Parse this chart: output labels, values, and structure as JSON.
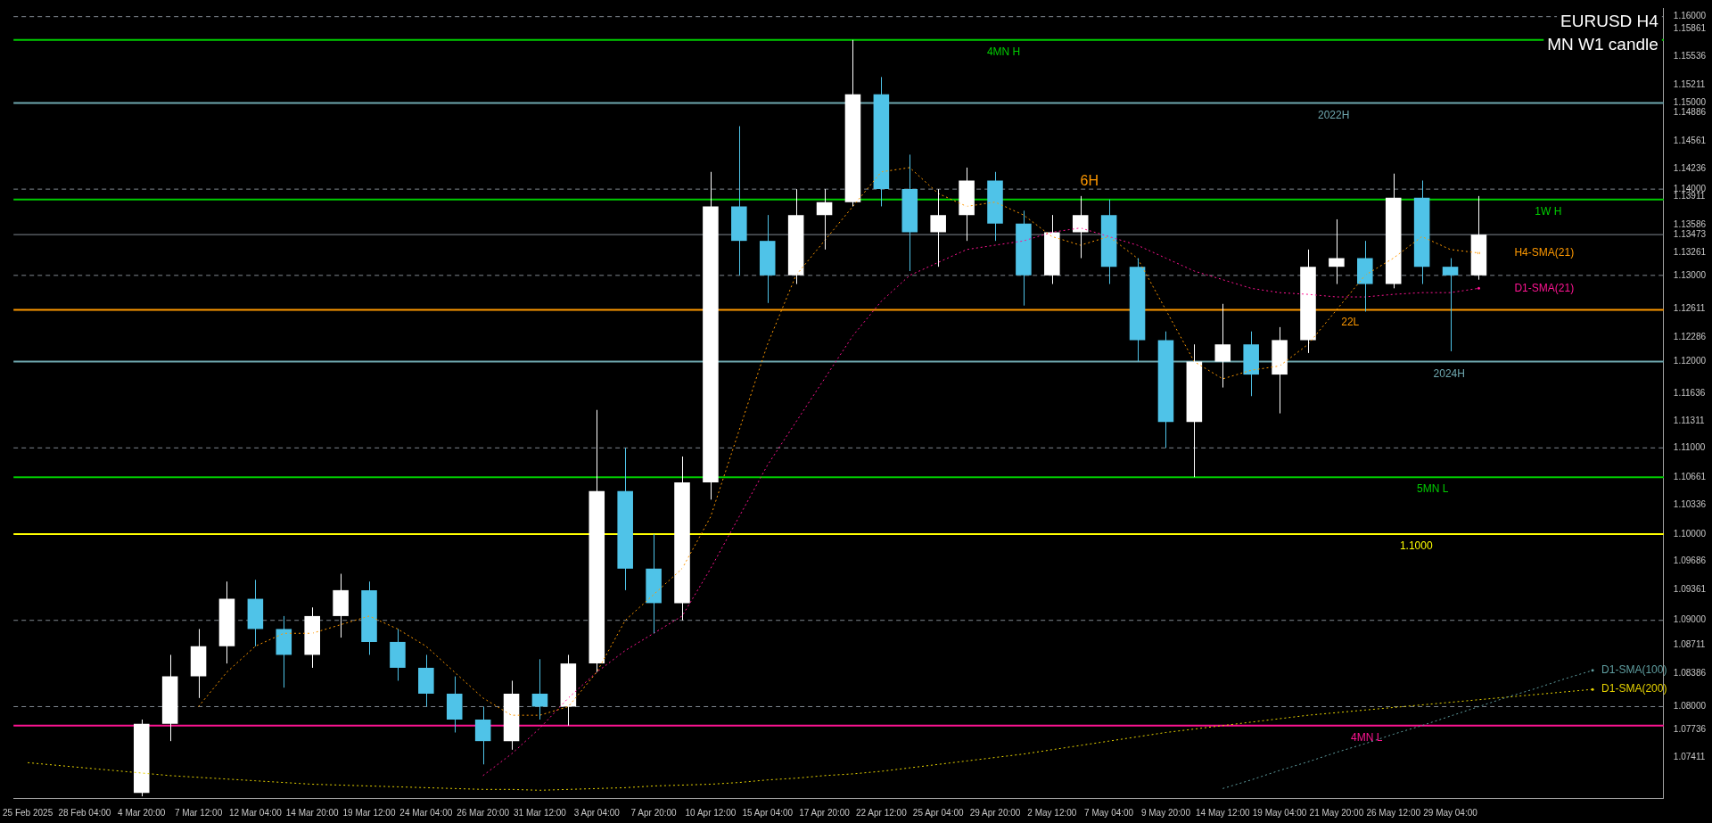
{
  "chart_data": {
    "type": "candlestick",
    "title": "EURUSD H4",
    "subtitle": "MN W1 candle",
    "categories": [
      "25 Feb 2025",
      null,
      "28 Feb 04:00",
      null,
      "4 Mar 20:00",
      null,
      "7 Mar 12:00",
      null,
      "12 Mar 04:00",
      null,
      "14 Mar 20:00",
      null,
      "19 Mar 12:00",
      null,
      "24 Mar 04:00",
      null,
      "26 Mar 20:00",
      null,
      "31 Mar 12:00",
      null,
      "3 Apr 04:00",
      null,
      "7 Apr 20:00",
      null,
      "10 Apr 12:00",
      null,
      "15 Apr 04:00",
      null,
      "17 Apr 20:00",
      null,
      "22 Apr 12:00",
      null,
      "25 Apr 04:00",
      null,
      "29 Apr 20:00",
      null,
      "2 May 12:00",
      null,
      "7 May 04:00",
      null,
      "9 May 20:00",
      null,
      "14 May 12:00",
      null,
      "19 May 04:00",
      null,
      "21 May 20:00",
      null,
      "26 May 12:00",
      null,
      "29 May 04:00",
      null,
      null,
      null,
      null,
      null,
      null,
      null
    ],
    "ohlc": [
      null,
      null,
      null,
      null,
      [
        1.07,
        1.0785,
        1.0696,
        1.078
      ],
      [
        1.078,
        1.086,
        1.076,
        1.0835
      ],
      [
        1.0835,
        1.089,
        1.081,
        1.087
      ],
      [
        1.087,
        1.0945,
        1.085,
        1.0925
      ],
      [
        1.0925,
        1.0947,
        1.087,
        1.089
      ],
      [
        1.089,
        1.0905,
        1.0822,
        1.086
      ],
      [
        1.086,
        1.0915,
        1.0845,
        1.0905
      ],
      [
        1.0905,
        1.0954,
        1.088,
        1.0935
      ],
      [
        1.0935,
        1.0945,
        1.086,
        1.0875
      ],
      [
        1.0875,
        1.089,
        1.083,
        1.0845
      ],
      [
        1.0845,
        1.086,
        1.08,
        1.0815
      ],
      [
        1.0815,
        1.0835,
        1.077,
        1.0785
      ],
      [
        1.0785,
        1.08,
        1.0733,
        1.076
      ],
      [
        1.076,
        1.083,
        1.075,
        1.0815
      ],
      [
        1.0815,
        1.0855,
        1.0785,
        1.08
      ],
      [
        1.08,
        1.086,
        1.0778,
        1.085
      ],
      [
        1.085,
        1.1144,
        1.084,
        1.105
      ],
      [
        1.105,
        1.11,
        1.0935,
        1.096
      ],
      [
        1.096,
        1.1,
        1.0885,
        1.092
      ],
      [
        1.092,
        1.109,
        1.09,
        1.106
      ],
      [
        1.106,
        1.142,
        1.104,
        1.138
      ],
      [
        1.138,
        1.1473,
        1.13,
        1.134
      ],
      [
        1.134,
        1.137,
        1.1268,
        1.13
      ],
      [
        1.13,
        1.14,
        1.129,
        1.137
      ],
      [
        1.137,
        1.14,
        1.133,
        1.1385
      ],
      [
        1.1385,
        1.1573,
        1.138,
        1.151
      ],
      [
        1.151,
        1.153,
        1.138,
        1.14
      ],
      [
        1.14,
        1.144,
        1.1305,
        1.135
      ],
      [
        1.135,
        1.14,
        1.131,
        1.137
      ],
      [
        1.137,
        1.1425,
        1.134,
        1.141
      ],
      [
        1.141,
        1.142,
        1.134,
        1.136
      ],
      [
        1.136,
        1.1375,
        1.1265,
        1.13
      ],
      [
        1.13,
        1.137,
        1.129,
        1.135
      ],
      [
        1.135,
        1.1392,
        1.132,
        1.137
      ],
      [
        1.137,
        1.1388,
        1.129,
        1.131
      ],
      [
        1.131,
        1.132,
        1.12,
        1.1225
      ],
      [
        1.1225,
        1.1235,
        1.11,
        1.113
      ],
      [
        1.113,
        1.122,
        1.1066,
        1.12
      ],
      [
        1.12,
        1.1267,
        1.117,
        1.122
      ],
      [
        1.122,
        1.1235,
        1.116,
        1.1185
      ],
      [
        1.1185,
        1.124,
        1.114,
        1.1225
      ],
      [
        1.1225,
        1.133,
        1.121,
        1.131
      ],
      [
        1.131,
        1.1365,
        1.129,
        1.132
      ],
      [
        1.132,
        1.134,
        1.1258,
        1.129
      ],
      [
        1.129,
        1.1418,
        1.1285,
        1.139
      ],
      [
        1.139,
        1.141,
        1.129,
        1.131
      ],
      [
        1.131,
        1.132,
        1.1212,
        1.13
      ],
      [
        1.13,
        1.1392,
        1.1295,
        1.13473
      ],
      null,
      null,
      null,
      null,
      null,
      null
    ],
    "colors": [
      null,
      null,
      null,
      null,
      "#ffffff",
      "#ffffff",
      "#ffffff",
      "#ffffff",
      "#4fc3e8",
      "#4fc3e8",
      "#ffffff",
      "#ffffff",
      "#4fc3e8",
      "#4fc3e8",
      "#4fc3e8",
      "#4fc3e8",
      "#4fc3e8",
      "#ffffff",
      "#4fc3e8",
      "#ffffff",
      "#ffffff",
      "#4fc3e8",
      "#4fc3e8",
      "#ffffff",
      "#ffffff",
      "#4fc3e8",
      "#4fc3e8",
      "#ffffff",
      "#ffffff",
      "#ffffff",
      "#4fc3e8",
      "#4fc3e8",
      "#ffffff",
      "#ffffff",
      "#4fc3e8",
      "#4fc3e8",
      "#ffffff",
      "#ffffff",
      "#4fc3e8",
      "#4fc3e8",
      "#4fc3e8",
      "#ffffff",
      "#ffffff",
      "#4fc3e8",
      "#ffffff",
      "#ffffff",
      "#ffffff",
      "#4fc3e8",
      "#ffffff",
      "#4fc3e8",
      "#4fc3e8",
      "#ffffff",
      null,
      null,
      null,
      null,
      null,
      null
    ],
    "series": [
      {
        "name": "H4-SMA(21)",
        "type": "line",
        "color": "#ff9900",
        "line_style": "dotted",
        "values": [
          null,
          null,
          null,
          null,
          null,
          null,
          1.08,
          1.084,
          1.087,
          1.0885,
          1.0885,
          1.0895,
          1.0905,
          1.089,
          1.087,
          1.084,
          1.081,
          1.079,
          1.079,
          1.08,
          1.084,
          1.09,
          1.093,
          1.096,
          1.102,
          1.112,
          1.122,
          1.13,
          1.134,
          1.138,
          1.142,
          1.1425,
          1.1395,
          1.138,
          1.1385,
          1.137,
          1.1345,
          1.1335,
          1.1345,
          1.132,
          1.126,
          1.12,
          1.118,
          1.119,
          1.1195,
          1.122,
          1.126,
          1.13,
          1.132,
          1.1345,
          1.133,
          1.1326,
          null,
          null,
          null,
          null,
          null,
          null
        ]
      },
      {
        "name": "D1-SMA(21)",
        "type": "line",
        "color": "#ff1493",
        "line_style": "dotted",
        "values": [
          null,
          null,
          null,
          null,
          null,
          null,
          null,
          null,
          null,
          null,
          null,
          null,
          null,
          null,
          null,
          null,
          1.072,
          1.0745,
          1.0775,
          1.081,
          1.084,
          1.0865,
          1.0885,
          1.0905,
          1.096,
          1.102,
          1.108,
          1.113,
          1.118,
          1.123,
          1.127,
          1.13,
          1.1315,
          1.133,
          1.1335,
          1.134,
          1.135,
          1.1355,
          1.1345,
          1.1335,
          1.132,
          1.1305,
          1.1295,
          1.1285,
          1.128,
          1.1278,
          1.1275,
          1.1275,
          1.1278,
          1.128,
          1.128,
          1.1285,
          null,
          null,
          null,
          null,
          null,
          null
        ]
      },
      {
        "name": "D1-SMA(100)",
        "type": "line",
        "color": "#5f9ea0",
        "line_style": "dotted",
        "values": [
          null,
          null,
          null,
          null,
          null,
          null,
          null,
          null,
          null,
          null,
          null,
          null,
          null,
          null,
          null,
          null,
          null,
          null,
          null,
          null,
          null,
          null,
          null,
          null,
          null,
          null,
          null,
          null,
          null,
          null,
          null,
          null,
          null,
          null,
          null,
          null,
          null,
          null,
          null,
          null,
          null,
          null,
          1.0705,
          1.0715,
          1.0726,
          1.0736,
          1.0747,
          1.0757,
          1.0768,
          1.0778,
          1.0789,
          1.08,
          1.0811,
          1.0821,
          1.0832,
          1.0842,
          null,
          null
        ]
      },
      {
        "name": "D1-SMA(200)",
        "type": "line",
        "color": "#e6d200",
        "line_style": "dotted",
        "values": [
          1.0735,
          1.0732,
          1.0729,
          1.0726,
          1.0723,
          1.072,
          1.0718,
          1.0716,
          1.0714,
          1.0712,
          1.071,
          1.0709,
          1.0708,
          1.0707,
          1.0706,
          1.0705,
          1.0704,
          1.0704,
          1.0703,
          1.0704,
          1.0705,
          1.0706,
          1.0708,
          1.0709,
          1.071,
          1.0712,
          1.0715,
          1.0717,
          1.072,
          1.0722,
          1.0725,
          1.0729,
          1.0733,
          1.0737,
          1.0741,
          1.0745,
          1.075,
          1.0755,
          1.076,
          1.0765,
          1.077,
          1.0774,
          1.0778,
          1.0782,
          1.0786,
          1.079,
          1.0793,
          1.0796,
          1.0799,
          1.0802,
          1.0805,
          1.0808,
          1.0811,
          1.0814,
          1.0817,
          1.082,
          null,
          null
        ]
      }
    ],
    "ylim": [
      1.0694,
      1.161
    ],
    "yticks": [
      {
        "value": 1.16,
        "label": "1.16000"
      },
      1.15861,
      1.15536,
      1.15211,
      {
        "value": 1.15,
        "label": "1.15000"
      },
      1.14886,
      1.14561,
      1.14236,
      {
        "value": 1.14,
        "label": "1.14000"
      },
      1.13911,
      1.13586,
      1.13473,
      1.13261,
      {
        "value": 1.13,
        "label": "1.13000"
      },
      1.12611,
      1.12286,
      {
        "value": 1.12,
        "label": "1.12000"
      },
      1.11636,
      1.11311,
      {
        "value": 1.11,
        "label": "1.11000"
      },
      1.10661,
      1.10336,
      {
        "value": 1.1,
        "label": "1.10000"
      },
      1.09686,
      1.09361,
      {
        "value": 1.09,
        "label": "1.09000"
      },
      1.08711,
      1.08386,
      {
        "value": 1.08,
        "label": "1.08000"
      },
      1.07736,
      1.07411
    ],
    "ref_lines": [
      {
        "axis": "y",
        "value": 1.1573,
        "label": "4MN H",
        "color": "#00cc00",
        "line_style": "solid"
      },
      {
        "axis": "y",
        "value": 1.15,
        "label": "2022H",
        "color": "#6fa8b0",
        "line_style": "solid"
      },
      {
        "axis": "y",
        "value": 1.1388,
        "label": "1W H",
        "color": "#00cc00",
        "line_style": "solid"
      },
      {
        "axis": "y",
        "value": 1.126,
        "label": "22L",
        "color": "#ff9900",
        "line_style": "solid"
      },
      {
        "axis": "y",
        "value": 1.12,
        "label": "2024H",
        "color": "#6fa8b0",
        "line_style": "solid"
      },
      {
        "axis": "y",
        "value": 1.1066,
        "label": "5MN L",
        "color": "#00cc00",
        "line_style": "solid"
      },
      {
        "axis": "y",
        "value": 1.1,
        "label": "1.1000",
        "color": "#ffff00",
        "line_style": "solid"
      },
      {
        "axis": "y",
        "value": 1.0778,
        "label": "4MN L",
        "color": "#ff1493",
        "line_style": "solid"
      },
      {
        "axis": "y",
        "value": 1.13473,
        "label": null,
        "color": "#808890",
        "line_style": "solid"
      },
      {
        "axis": "y",
        "value": 1.16,
        "label": null,
        "color": "#808890",
        "line_style": "dashed"
      },
      {
        "axis": "y",
        "value": 1.14,
        "label": null,
        "color": "#808890",
        "line_style": "dashed"
      },
      {
        "axis": "y",
        "value": 1.13,
        "label": null,
        "color": "#808890",
        "line_style": "dashed"
      },
      {
        "axis": "y",
        "value": 1.11,
        "label": null,
        "color": "#808890",
        "line_style": "dashed"
      },
      {
        "axis": "y",
        "value": 1.09,
        "label": null,
        "color": "#808890",
        "line_style": "dashed"
      },
      {
        "axis": "y",
        "value": 1.08,
        "label": null,
        "color": "#808890",
        "line_style": "dashed"
      }
    ],
    "annotations": [
      {
        "text": "6H",
        "y": 1.1401
      }
    ]
  }
}
